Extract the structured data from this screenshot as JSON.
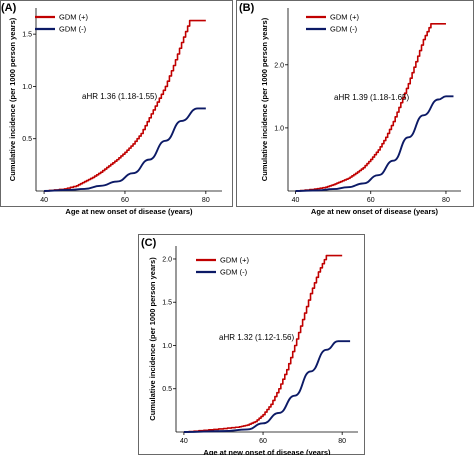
{
  "colors": {
    "gdm_pos": "#c00000",
    "gdm_neg": "#0c1a66",
    "axis": "#000000"
  },
  "chart_data": [
    {
      "panel": "(A)",
      "type": "line",
      "xlabel": "Age at new onset of disease (years)",
      "ylabel": "Cumulative incidence (per 1000 person years)",
      "xlim": [
        38,
        84
      ],
      "ylim": [
        0,
        1.75
      ],
      "xticks": [
        "40",
        "60",
        "80"
      ],
      "xtick_values": [
        40,
        60,
        80
      ],
      "yticks": [
        "0.5",
        "1.0",
        "1.5"
      ],
      "ytick_values": [
        0.5,
        1.0,
        1.5
      ],
      "annotation": "aHR 1.36 (1.18-1.55)",
      "legend_position": "top-left",
      "series": [
        {
          "name": "GDM (+)",
          "color": "#c00000",
          "step": true,
          "x": [
            40,
            45,
            48,
            50,
            52,
            54,
            56,
            58,
            60,
            62,
            64,
            66,
            68,
            70,
            72,
            74,
            76,
            80
          ],
          "y": [
            0,
            0.02,
            0.05,
            0.09,
            0.13,
            0.18,
            0.24,
            0.3,
            0.37,
            0.45,
            0.55,
            0.7,
            0.85,
            1.0,
            1.2,
            1.42,
            1.63,
            1.63
          ]
        },
        {
          "name": "GDM (-)",
          "color": "#0c1a66",
          "step": false,
          "x": [
            40,
            46,
            50,
            54,
            58,
            62,
            66,
            70,
            74,
            78,
            80
          ],
          "y": [
            0,
            0.01,
            0.02,
            0.05,
            0.09,
            0.17,
            0.3,
            0.48,
            0.67,
            0.79,
            0.79
          ]
        }
      ]
    },
    {
      "panel": "(B)",
      "type": "line",
      "xlabel": "Age at new onset of disease (years)",
      "ylabel": "Cumulative incidence (per 1000 person years)",
      "xlim": [
        38,
        84
      ],
      "ylim": [
        0,
        2.9
      ],
      "xticks": [
        "40",
        "60",
        "80"
      ],
      "xtick_values": [
        40,
        60,
        80
      ],
      "yticks": [
        "1.0",
        "2.0"
      ],
      "ytick_values": [
        1.0,
        2.0
      ],
      "annotation": "aHR 1.39 (1.18-1.65)",
      "legend_position": "top-left",
      "series": [
        {
          "name": "GDM (+)",
          "color": "#c00000",
          "step": true,
          "x": [
            40,
            45,
            48,
            50,
            52,
            54,
            56,
            58,
            60,
            62,
            64,
            66,
            68,
            70,
            72,
            74,
            76,
            80
          ],
          "y": [
            0,
            0.03,
            0.06,
            0.1,
            0.15,
            0.2,
            0.28,
            0.37,
            0.5,
            0.65,
            0.85,
            1.1,
            1.4,
            1.7,
            2.05,
            2.4,
            2.65,
            2.65
          ]
        },
        {
          "name": "GDM (-)",
          "color": "#0c1a66",
          "step": false,
          "x": [
            40,
            46,
            50,
            54,
            58,
            62,
            66,
            70,
            74,
            78,
            80,
            82
          ],
          "y": [
            0,
            0.01,
            0.03,
            0.06,
            0.12,
            0.25,
            0.48,
            0.85,
            1.2,
            1.45,
            1.5,
            1.5
          ]
        }
      ]
    },
    {
      "panel": "(C)",
      "type": "line",
      "xlabel": "Age at new onset of disease (years)",
      "ylabel": "Cumulative incidence (per 1000 person years)",
      "xlim": [
        38,
        84
      ],
      "ylim": [
        0,
        2.15
      ],
      "xticks": [
        "40",
        "60",
        "80"
      ],
      "xtick_values": [
        40,
        60,
        80
      ],
      "yticks": [
        "0.5",
        "1.0",
        "1.5",
        "2.0"
      ],
      "ytick_values": [
        0.5,
        1.0,
        1.5,
        2.0
      ],
      "annotation": "aHR 1.32 (1.12-1.56)",
      "legend_position": "top-left",
      "series": [
        {
          "name": "GDM (+)",
          "color": "#c00000",
          "step": true,
          "x": [
            40,
            45,
            50,
            54,
            56,
            58,
            60,
            62,
            64,
            66,
            68,
            70,
            72,
            74,
            76,
            80
          ],
          "y": [
            0,
            0.02,
            0.04,
            0.06,
            0.08,
            0.12,
            0.2,
            0.32,
            0.5,
            0.72,
            1.0,
            1.3,
            1.6,
            1.85,
            2.04,
            2.04
          ]
        },
        {
          "name": "GDM (-)",
          "color": "#0c1a66",
          "step": false,
          "x": [
            40,
            50,
            56,
            60,
            64,
            68,
            72,
            76,
            79,
            82
          ],
          "y": [
            0,
            0.01,
            0.03,
            0.1,
            0.22,
            0.42,
            0.7,
            0.95,
            1.05,
            1.05
          ]
        }
      ]
    }
  ]
}
